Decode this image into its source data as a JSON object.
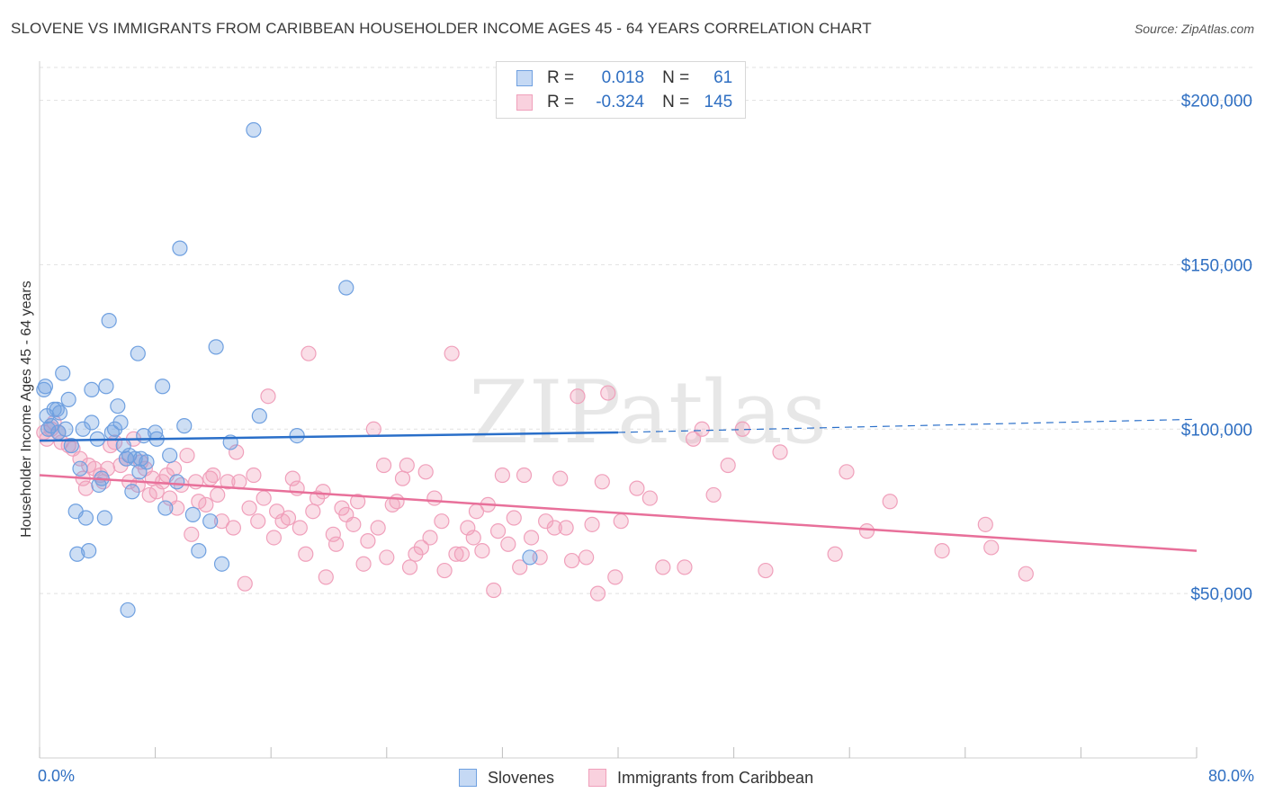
{
  "title": "SLOVENE VS IMMIGRANTS FROM CARIBBEAN HOUSEHOLDER INCOME AGES 45 - 64 YEARS CORRELATION CHART",
  "source": "Source: ZipAtlas.com",
  "watermark": "ZIPatlas",
  "colors": {
    "slovenes": "#6fa0e0",
    "caribbean": "#f0a0bb",
    "slovenes_line": "#2a6fc9",
    "caribbean_line": "#e8709a",
    "tick_text": "#2f6fc2"
  },
  "legend": {
    "rows": [
      {
        "r_label": "R =",
        "r_value": "0.018",
        "n_label": "N =",
        "n_value": "61"
      },
      {
        "r_label": "R =",
        "r_value": "-0.324",
        "n_label": "N =",
        "n_value": "145"
      }
    ]
  },
  "chart_data": {
    "type": "scatter",
    "xlabel": "",
    "ylabel": "Householder Income Ages 45 - 64 years",
    "xlim": [
      0,
      80
    ],
    "ylim": [
      0,
      210000
    ],
    "x_tick_labels": [
      "0.0%",
      "80.0%"
    ],
    "y_ticks": [
      50000,
      100000,
      150000,
      200000
    ],
    "y_tick_labels": [
      "$50,000",
      "$100,000",
      "$150,000",
      "$200,000"
    ],
    "grid": true,
    "legend_placement": "top-center",
    "series": [
      {
        "name": "Slovenes",
        "trend": {
          "x": [
            0,
            40
          ],
          "y": [
            96500,
            99000
          ],
          "dashed_extension_to": [
            80,
            103000
          ]
        },
        "points": [
          [
            0.3,
            112000
          ],
          [
            0.4,
            113000
          ],
          [
            0.5,
            104000
          ],
          [
            0.6,
            100000
          ],
          [
            0.8,
            101000
          ],
          [
            1.0,
            106000
          ],
          [
            1.2,
            106000
          ],
          [
            1.3,
            99000
          ],
          [
            1.4,
            105000
          ],
          [
            1.6,
            117000
          ],
          [
            1.8,
            100000
          ],
          [
            2.0,
            109000
          ],
          [
            2.2,
            95000
          ],
          [
            2.5,
            75000
          ],
          [
            2.6,
            62000
          ],
          [
            2.8,
            88000
          ],
          [
            3.0,
            100000
          ],
          [
            3.2,
            73000
          ],
          [
            3.4,
            63000
          ],
          [
            3.6,
            102000
          ],
          [
            3.6,
            112000
          ],
          [
            4.0,
            97000
          ],
          [
            4.1,
            83000
          ],
          [
            4.3,
            85000
          ],
          [
            4.5,
            73000
          ],
          [
            4.6,
            113000
          ],
          [
            4.8,
            133000
          ],
          [
            5.0,
            99000
          ],
          [
            5.2,
            100000
          ],
          [
            5.4,
            107000
          ],
          [
            5.6,
            102000
          ],
          [
            5.8,
            95000
          ],
          [
            6.0,
            91000
          ],
          [
            6.1,
            45000
          ],
          [
            6.2,
            92000
          ],
          [
            6.4,
            81000
          ],
          [
            6.6,
            91000
          ],
          [
            6.8,
            123000
          ],
          [
            6.9,
            87000
          ],
          [
            7.0,
            91000
          ],
          [
            7.2,
            98000
          ],
          [
            7.4,
            90000
          ],
          [
            8.0,
            99000
          ],
          [
            8.1,
            97000
          ],
          [
            8.5,
            113000
          ],
          [
            8.7,
            76000
          ],
          [
            9.0,
            92000
          ],
          [
            9.5,
            84000
          ],
          [
            9.7,
            155000
          ],
          [
            10.0,
            101000
          ],
          [
            10.6,
            74000
          ],
          [
            11.0,
            63000
          ],
          [
            11.8,
            72000
          ],
          [
            12.2,
            125000
          ],
          [
            12.6,
            59000
          ],
          [
            13.2,
            96000
          ],
          [
            14.8,
            191000
          ],
          [
            15.2,
            104000
          ],
          [
            17.8,
            98000
          ],
          [
            21.2,
            143000
          ],
          [
            33.9,
            61000
          ]
        ]
      },
      {
        "name": "Immigrants from Caribbean",
        "trend": {
          "x": [
            0,
            80
          ],
          "y": [
            86000,
            63000
          ]
        },
        "points": [
          [
            0.3,
            99000
          ],
          [
            0.5,
            97000
          ],
          [
            0.8,
            100000
          ],
          [
            1.0,
            102000
          ],
          [
            1.3,
            99000
          ],
          [
            1.5,
            96000
          ],
          [
            2.0,
            95000
          ],
          [
            2.3,
            94000
          ],
          [
            2.8,
            91000
          ],
          [
            3.0,
            85000
          ],
          [
            3.2,
            82000
          ],
          [
            3.4,
            89000
          ],
          [
            3.8,
            88000
          ],
          [
            4.2,
            86000
          ],
          [
            4.4,
            84000
          ],
          [
            4.7,
            88000
          ],
          [
            4.9,
            95000
          ],
          [
            5.2,
            96000
          ],
          [
            5.6,
            89000
          ],
          [
            6.0,
            91000
          ],
          [
            6.2,
            84000
          ],
          [
            6.5,
            97000
          ],
          [
            6.8,
            83000
          ],
          [
            7.0,
            90000
          ],
          [
            7.3,
            88000
          ],
          [
            7.6,
            80000
          ],
          [
            7.8,
            85000
          ],
          [
            8.1,
            81000
          ],
          [
            8.5,
            84000
          ],
          [
            8.8,
            86000
          ],
          [
            9.0,
            79000
          ],
          [
            9.3,
            88000
          ],
          [
            9.5,
            76000
          ],
          [
            9.8,
            83000
          ],
          [
            10.2,
            92000
          ],
          [
            10.5,
            68000
          ],
          [
            10.8,
            84000
          ],
          [
            11.0,
            78000
          ],
          [
            11.5,
            77000
          ],
          [
            11.8,
            85000
          ],
          [
            12.0,
            86000
          ],
          [
            12.3,
            80000
          ],
          [
            12.6,
            72000
          ],
          [
            13.0,
            84000
          ],
          [
            13.4,
            70000
          ],
          [
            13.6,
            93000
          ],
          [
            13.8,
            84000
          ],
          [
            14.2,
            53000
          ],
          [
            14.5,
            76000
          ],
          [
            14.8,
            86000
          ],
          [
            15.1,
            72000
          ],
          [
            15.5,
            79000
          ],
          [
            15.8,
            110000
          ],
          [
            16.2,
            67000
          ],
          [
            16.4,
            75000
          ],
          [
            16.8,
            72000
          ],
          [
            17.2,
            73000
          ],
          [
            17.5,
            85000
          ],
          [
            17.8,
            82000
          ],
          [
            18.0,
            70000
          ],
          [
            18.4,
            62000
          ],
          [
            18.6,
            123000
          ],
          [
            18.9,
            75000
          ],
          [
            19.2,
            79000
          ],
          [
            19.6,
            81000
          ],
          [
            19.8,
            55000
          ],
          [
            20.3,
            68000
          ],
          [
            20.5,
            65000
          ],
          [
            20.9,
            76000
          ],
          [
            21.2,
            74000
          ],
          [
            21.7,
            71000
          ],
          [
            22.0,
            78000
          ],
          [
            22.4,
            59000
          ],
          [
            22.7,
            66000
          ],
          [
            23.1,
            100000
          ],
          [
            23.4,
            70000
          ],
          [
            23.8,
            89000
          ],
          [
            24.0,
            61000
          ],
          [
            24.4,
            77000
          ],
          [
            24.7,
            78000
          ],
          [
            25.1,
            85000
          ],
          [
            25.4,
            89000
          ],
          [
            25.6,
            58000
          ],
          [
            26.0,
            62000
          ],
          [
            26.4,
            64000
          ],
          [
            26.7,
            87000
          ],
          [
            27.0,
            67000
          ],
          [
            27.3,
            79000
          ],
          [
            27.8,
            72000
          ],
          [
            28.0,
            57000
          ],
          [
            28.5,
            123000
          ],
          [
            28.8,
            62000
          ],
          [
            29.2,
            62000
          ],
          [
            29.6,
            70000
          ],
          [
            30.0,
            67000
          ],
          [
            30.2,
            75000
          ],
          [
            30.6,
            63000
          ],
          [
            31.0,
            77000
          ],
          [
            31.4,
            51000
          ],
          [
            31.7,
            69000
          ],
          [
            32.0,
            86000
          ],
          [
            32.4,
            65000
          ],
          [
            32.8,
            73000
          ],
          [
            33.2,
            58000
          ],
          [
            33.5,
            86000
          ],
          [
            34.0,
            67000
          ],
          [
            34.6,
            61000
          ],
          [
            35.0,
            72000
          ],
          [
            35.6,
            70000
          ],
          [
            36.0,
            85000
          ],
          [
            36.4,
            70000
          ],
          [
            36.8,
            60000
          ],
          [
            37.2,
            110000
          ],
          [
            37.8,
            61000
          ],
          [
            38.2,
            71000
          ],
          [
            38.6,
            50000
          ],
          [
            38.9,
            84000
          ],
          [
            39.3,
            111000
          ],
          [
            39.8,
            55000
          ],
          [
            40.2,
            72000
          ],
          [
            41.3,
            82000
          ],
          [
            42.2,
            79000
          ],
          [
            43.1,
            58000
          ],
          [
            44.6,
            58000
          ],
          [
            45.2,
            97000
          ],
          [
            45.8,
            100000
          ],
          [
            46.6,
            80000
          ],
          [
            47.6,
            89000
          ],
          [
            48.6,
            100000
          ],
          [
            50.2,
            57000
          ],
          [
            51.2,
            93000
          ],
          [
            55.0,
            62000
          ],
          [
            55.8,
            87000
          ],
          [
            57.2,
            69000
          ],
          [
            58.8,
            78000
          ],
          [
            62.4,
            63000
          ],
          [
            65.4,
            71000
          ],
          [
            65.8,
            64000
          ],
          [
            68.2,
            56000
          ]
        ]
      }
    ]
  }
}
